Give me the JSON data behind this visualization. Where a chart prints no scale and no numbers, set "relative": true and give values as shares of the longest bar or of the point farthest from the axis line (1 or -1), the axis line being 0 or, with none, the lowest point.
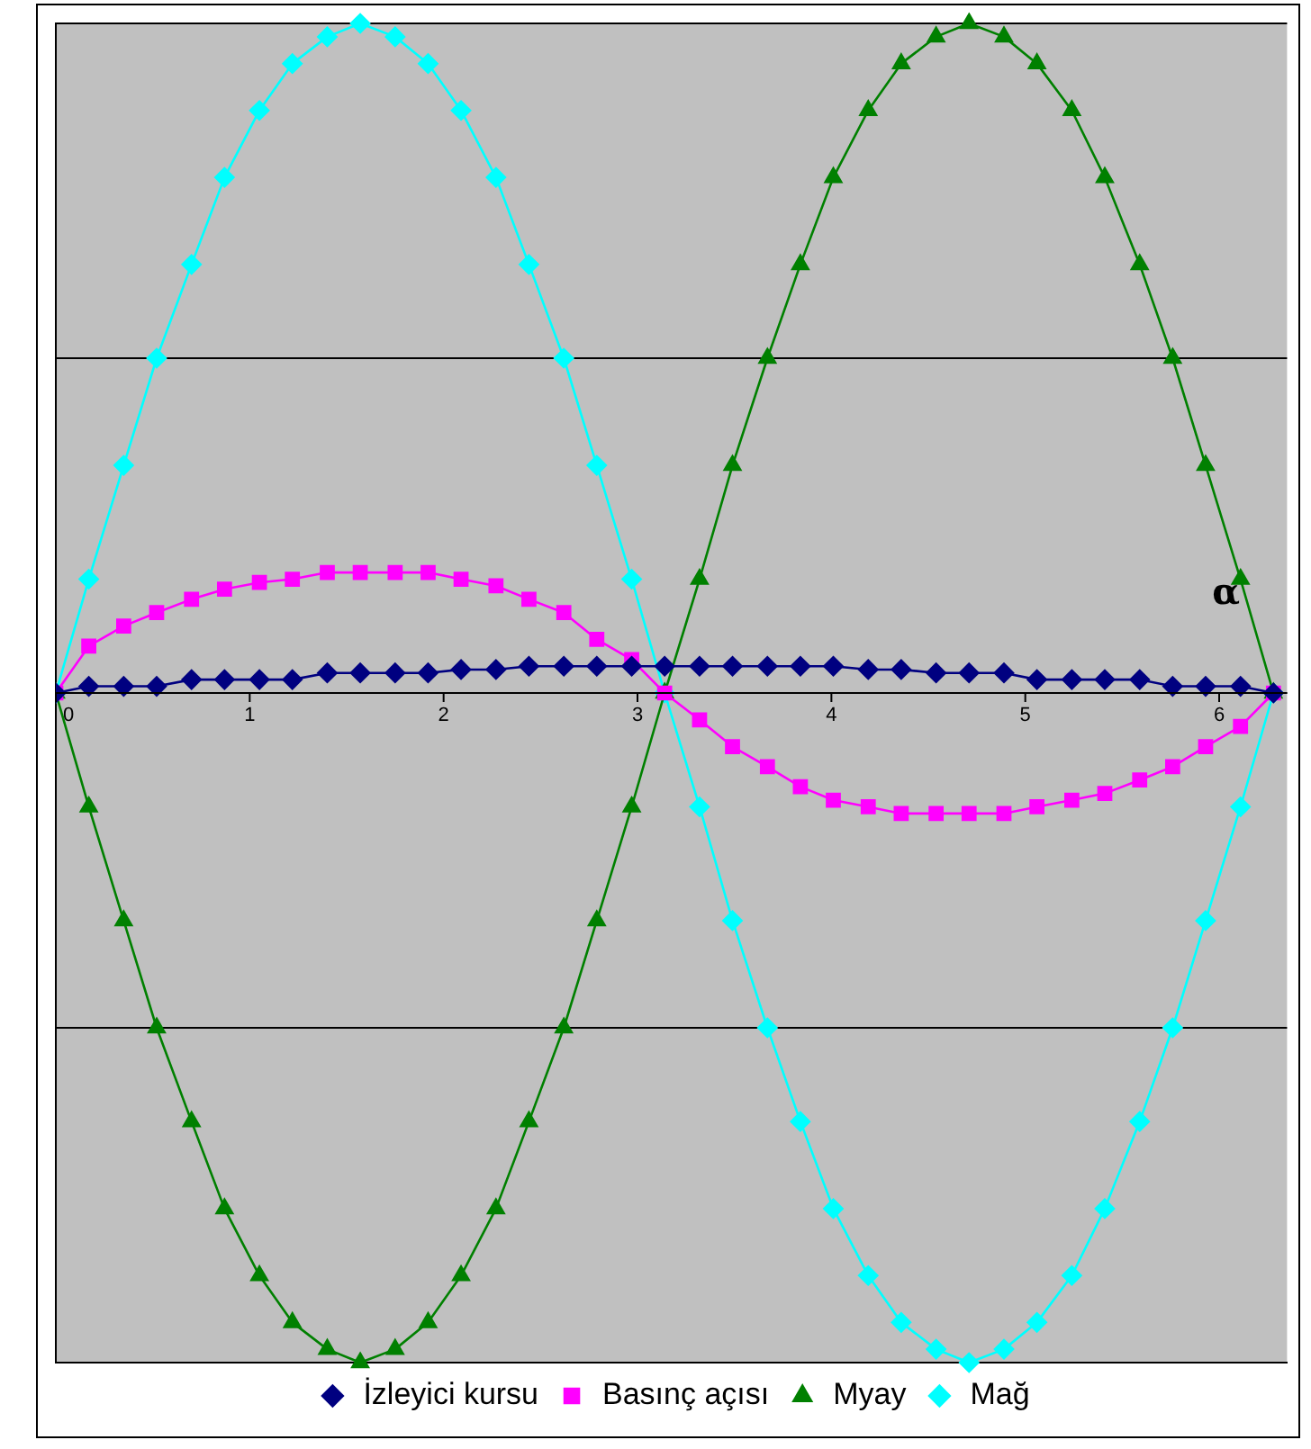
{
  "chart_data": {
    "type": "line",
    "relative": true,
    "x": [
      0,
      0.17,
      0.35,
      0.52,
      0.7,
      0.87,
      1.05,
      1.22,
      1.4,
      1.57,
      1.75,
      1.92,
      2.09,
      2.27,
      2.44,
      2.62,
      2.79,
      2.97,
      3.14,
      3.32,
      3.49,
      3.67,
      3.84,
      4.01,
      4.19,
      4.36,
      4.54,
      4.71,
      4.89,
      5.06,
      5.24,
      5.41,
      5.59,
      5.76,
      5.93,
      6.11,
      6.28
    ],
    "xlim": [
      0,
      6.35
    ],
    "xticks": [
      0,
      1,
      2,
      3,
      4,
      5,
      6
    ],
    "grid": "y",
    "legend": "bottom",
    "annotations": [
      {
        "text": "α",
        "x": 6.11,
        "y": 0.12
      }
    ],
    "series": [
      {
        "name": "İzleyici kursu",
        "color": "#000080",
        "marker": "diamond",
        "values": [
          0,
          0.01,
          0.01,
          0.01,
          0.02,
          0.02,
          0.02,
          0.02,
          0.03,
          0.03,
          0.03,
          0.03,
          0.035,
          0.035,
          0.04,
          0.04,
          0.04,
          0.04,
          0.04,
          0.04,
          0.04,
          0.04,
          0.04,
          0.04,
          0.035,
          0.035,
          0.03,
          0.03,
          0.03,
          0.02,
          0.02,
          0.02,
          0.02,
          0.01,
          0.01,
          0.01,
          0
        ]
      },
      {
        "name": "Basınç açısı",
        "color": "#ff00ff",
        "marker": "square",
        "values": [
          0,
          0.07,
          0.1,
          0.12,
          0.14,
          0.155,
          0.165,
          0.17,
          0.18,
          0.18,
          0.18,
          0.18,
          0.17,
          0.16,
          0.14,
          0.12,
          0.08,
          0.05,
          0,
          -0.04,
          -0.08,
          -0.11,
          -0.14,
          -0.16,
          -0.17,
          -0.18,
          -0.18,
          -0.18,
          -0.18,
          -0.17,
          -0.16,
          -0.15,
          -0.13,
          -0.11,
          -0.08,
          -0.05,
          0
        ]
      },
      {
        "name": "Myay",
        "color": "#008000",
        "marker": "triangle",
        "values": [
          0,
          -0.17,
          -0.34,
          -0.5,
          -0.64,
          -0.77,
          -0.87,
          -0.94,
          -0.98,
          -1,
          -0.98,
          -0.94,
          -0.87,
          -0.77,
          -0.64,
          -0.5,
          -0.34,
          -0.17,
          0,
          0.17,
          0.34,
          0.5,
          0.64,
          0.77,
          0.87,
          0.94,
          0.98,
          1,
          0.98,
          0.94,
          0.87,
          0.77,
          0.64,
          0.5,
          0.34,
          0.17,
          0
        ]
      },
      {
        "name": "Mağ",
        "color": "#00ffff",
        "marker": "diamond",
        "values": [
          0,
          0.17,
          0.34,
          0.5,
          0.64,
          0.77,
          0.87,
          0.94,
          0.98,
          1,
          0.98,
          0.94,
          0.87,
          0.77,
          0.64,
          0.5,
          0.34,
          0.17,
          0,
          -0.17,
          -0.34,
          -0.5,
          -0.64,
          -0.77,
          -0.87,
          -0.94,
          -0.98,
          -1,
          -0.98,
          -0.94,
          -0.87,
          -0.77,
          -0.64,
          -0.5,
          -0.34,
          -0.17,
          0
        ]
      }
    ]
  }
}
